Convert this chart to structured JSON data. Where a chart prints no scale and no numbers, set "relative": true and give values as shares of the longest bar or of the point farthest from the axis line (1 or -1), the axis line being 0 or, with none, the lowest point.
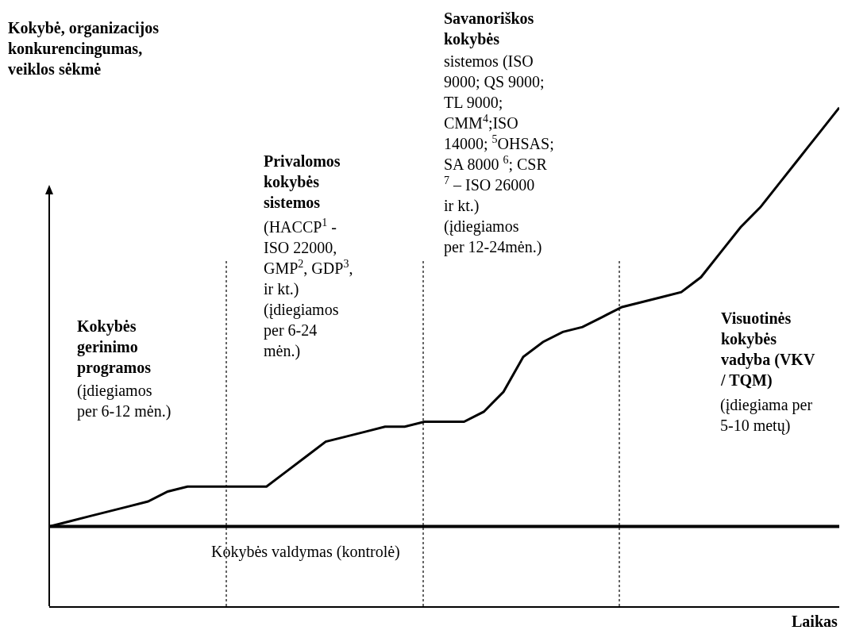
{
  "chart_data": {
    "type": "line",
    "relative": true,
    "ylabel": "Kokybė, organizacijos konkurencingumas, veiklos sėkmė",
    "xlabel": "Laikas",
    "legend": false,
    "marker": "none",
    "line_style": "solid",
    "categories": [
      null,
      null,
      null,
      null,
      null,
      null,
      null,
      null,
      null,
      null,
      null,
      null,
      null,
      null,
      null,
      null,
      null,
      null,
      null,
      null,
      null,
      null,
      null,
      null,
      null,
      null,
      null,
      null,
      null,
      null,
      null,
      null,
      null,
      null,
      null,
      null,
      null,
      null,
      null,
      null,
      null
    ],
    "series": [
      {
        "values": [
          0.16,
          0.17,
          0.18,
          0.19,
          0.2,
          0.21,
          0.23,
          0.24,
          0.24,
          0.24,
          0.24,
          0.24,
          0.27,
          0.3,
          0.33,
          0.34,
          0.35,
          0.36,
          0.36,
          0.37,
          0.37,
          0.37,
          0.39,
          0.43,
          0.5,
          0.53,
          0.55,
          0.56,
          0.58,
          0.6,
          0.61,
          0.62,
          0.63,
          0.66,
          0.71,
          0.76,
          0.8,
          0.85,
          0.9,
          0.95,
          1.0
        ],
        "color": "#000000"
      },
      {
        "name": "Kokybės valdymas (kontrolė)",
        "values": [
          0.16,
          0.16,
          0.16,
          0.16,
          0.16,
          0.16,
          0.16,
          0.16,
          0.16,
          0.16,
          0.16,
          0.16,
          0.16,
          0.16,
          0.16,
          0.16,
          0.16,
          0.16,
          0.16,
          0.16,
          0.16,
          0.16,
          0.16,
          0.16,
          0.16,
          0.16,
          0.16,
          0.16,
          0.16,
          0.16,
          0.16,
          0.16,
          0.16,
          0.16,
          0.16,
          0.16,
          0.16,
          0.16,
          0.16,
          0.16,
          0.16
        ],
        "color": "#000000"
      }
    ],
    "annotations": [
      "Kokybės gerinimo programos",
      "(įdiegiamos per 6-12 mėn.)",
      "Privalomos kokybės sistemos",
      "(HACCP$^{1}$ - ISO 22000, GMP$^{2}$, GDP$^{3}$, ir kt.) (įdiegiamos per 6-24 mėn.)",
      "Savanoriškos kokybės",
      "sistemos (ISO 9000; QS 9000; TL 9000; CMM$^{4}$;ISO 14000; $^{5}$OHSAS; SA 8000 $^{6}$; CSR $^{7}$ – ISO 26000 ir kt.) (įdiegiamos per 12-24mėn.)",
      "Visuotinės kokybės vadyba (VKV / TQM)",
      "(įdiegiama per 5-10 metų)"
    ]
  }
}
